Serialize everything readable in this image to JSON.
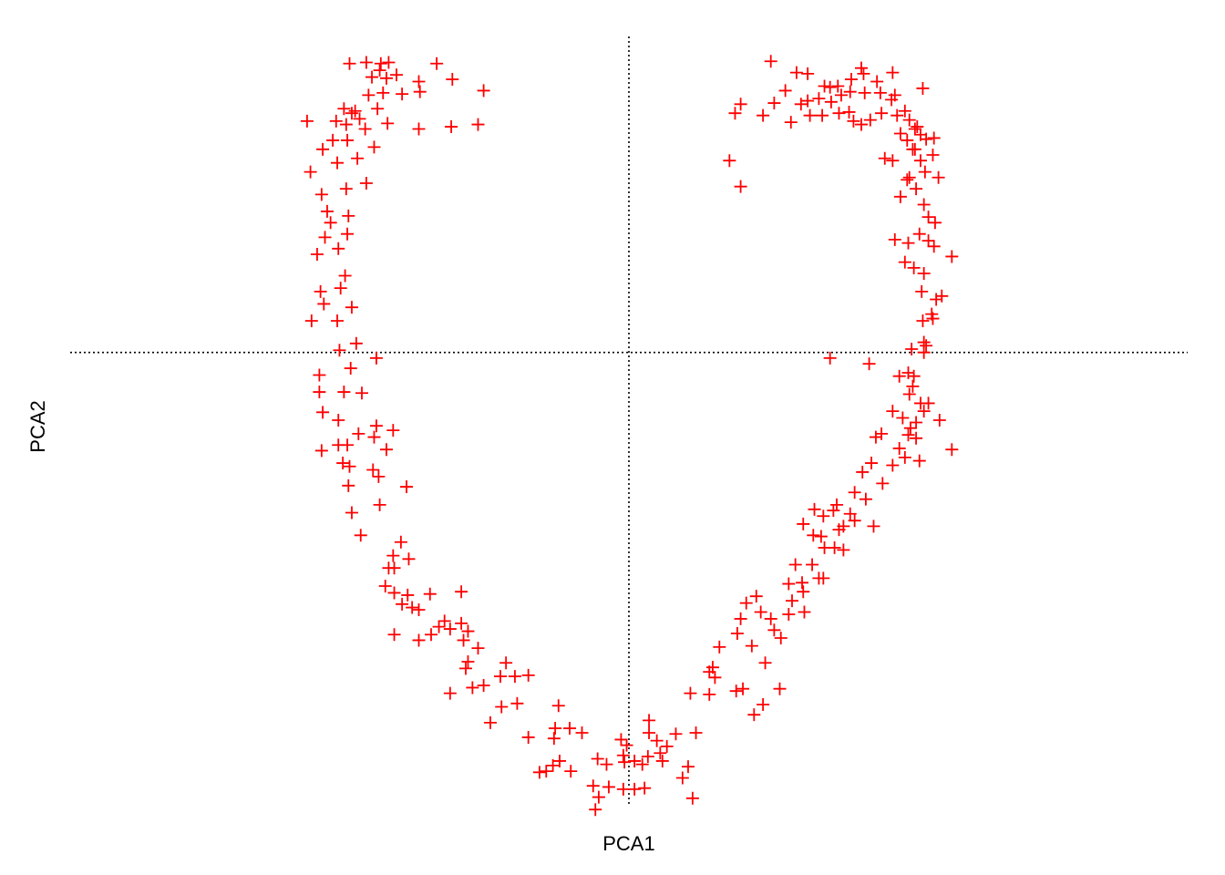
{
  "chart_data": {
    "type": "scatter",
    "xlabel": "PCA1",
    "ylabel": "PCA2",
    "marker": "plus",
    "color": "#ff0000",
    "reference_lines": {
      "x": 0,
      "y": 0
    },
    "grid": false,
    "legend": "none",
    "xlim": [
      -5,
      5
    ],
    "ylim": [
      -4,
      2.8
    ],
    "series": [
      {
        "points": [
          [
            -2.5,
            2.56
          ],
          [
            -2.35,
            2.57
          ],
          [
            -2.15,
            2.57
          ],
          [
            -2.22,
            2.56
          ],
          [
            -1.72,
            2.56
          ],
          [
            -2.23,
            2.5
          ],
          [
            -2.17,
            2.43
          ],
          [
            -2.3,
            2.44
          ],
          [
            -2.08,
            2.46
          ],
          [
            -1.88,
            2.4
          ],
          [
            -1.58,
            2.42
          ],
          [
            -1.87,
            2.31
          ],
          [
            -1.3,
            2.32
          ],
          [
            -2.03,
            2.29
          ],
          [
            -2.33,
            2.28
          ],
          [
            -2.2,
            2.3
          ],
          [
            -2.25,
            2.16
          ],
          [
            -2.45,
            2.14
          ],
          [
            -2.55,
            2.16
          ],
          [
            -2.48,
            2.12
          ],
          [
            -2.62,
            2.05
          ],
          [
            -2.88,
            2.05
          ],
          [
            -2.53,
            2.02
          ],
          [
            -2.41,
            2.07
          ],
          [
            -2.36,
            1.98
          ],
          [
            -2.16,
            2.03
          ],
          [
            -1.88,
            1.98
          ],
          [
            -1.35,
            2.02
          ],
          [
            -1.59,
            2.0
          ],
          [
            -2.28,
            1.82
          ],
          [
            -2.52,
            1.88
          ],
          [
            -2.65,
            1.88
          ],
          [
            -2.74,
            1.8
          ],
          [
            -2.43,
            1.72
          ],
          [
            -2.61,
            1.68
          ],
          [
            -2.85,
            1.6
          ],
          [
            -2.35,
            1.5
          ],
          [
            -2.53,
            1.45
          ],
          [
            -2.75,
            1.4
          ],
          [
            -2.7,
            1.25
          ],
          [
            -2.67,
            1.15
          ],
          [
            -2.51,
            1.21
          ],
          [
            -2.52,
            1.05
          ],
          [
            -2.72,
            1.02
          ],
          [
            -2.6,
            0.92
          ],
          [
            -2.79,
            0.87
          ],
          [
            -2.54,
            0.68
          ],
          [
            -2.76,
            0.54
          ],
          [
            -2.58,
            0.57
          ],
          [
            -2.73,
            0.43
          ],
          [
            -2.48,
            0.4
          ],
          [
            -2.84,
            0.28
          ],
          [
            -2.61,
            0.28
          ],
          [
            -2.44,
            0.08
          ],
          [
            -2.59,
            0.02
          ],
          [
            -2.26,
            -0.05
          ],
          [
            -2.49,
            -0.14
          ],
          [
            -2.77,
            -0.2
          ],
          [
            -2.55,
            -0.35
          ],
          [
            -2.77,
            -0.35
          ],
          [
            -2.39,
            -0.36
          ],
          [
            -2.6,
            -0.6
          ],
          [
            -2.74,
            -0.53
          ],
          [
            -2.26,
            -0.65
          ],
          [
            -2.42,
            -0.72
          ],
          [
            -2.11,
            -0.69
          ],
          [
            -2.6,
            -0.82
          ],
          [
            -2.52,
            -0.82
          ],
          [
            -2.28,
            -0.75
          ],
          [
            -2.75,
            -0.87
          ],
          [
            -2.17,
            -0.86
          ],
          [
            -2.56,
            -0.98
          ],
          [
            -2.5,
            -1.01
          ],
          [
            -2.29,
            -1.04
          ],
          [
            -2.24,
            -1.1
          ],
          [
            -1.99,
            -1.19
          ],
          [
            -2.51,
            -1.18
          ],
          [
            -2.23,
            -1.35
          ],
          [
            -2.48,
            -1.42
          ],
          [
            -2.4,
            -1.62
          ],
          [
            -2.04,
            -1.68
          ],
          [
            -2.11,
            -1.8
          ],
          [
            -1.97,
            -1.83
          ],
          [
            -2.15,
            -1.91
          ],
          [
            -2.1,
            -1.91
          ],
          [
            -2.18,
            -2.07
          ],
          [
            -2.1,
            -2.13
          ],
          [
            -1.98,
            -2.15
          ],
          [
            -1.78,
            -2.14
          ],
          [
            -1.5,
            -2.12
          ],
          [
            -2.03,
            -2.23
          ],
          [
            -1.94,
            -2.26
          ],
          [
            -1.88,
            -2.28
          ],
          [
            -1.65,
            -2.38
          ],
          [
            -1.5,
            -2.4
          ],
          [
            -1.7,
            -2.43
          ],
          [
            -1.6,
            -2.45
          ],
          [
            -1.44,
            -2.47
          ],
          [
            -2.1,
            -2.5
          ],
          [
            -1.88,
            -2.55
          ],
          [
            -1.77,
            -2.5
          ],
          [
            -1.48,
            -2.55
          ],
          [
            -1.35,
            -2.62
          ],
          [
            -1.44,
            -2.74
          ],
          [
            -1.46,
            -2.8
          ],
          [
            -1.1,
            -2.75
          ],
          [
            -1.15,
            -2.87
          ],
          [
            -1.02,
            -2.87
          ],
          [
            -0.9,
            -2.86
          ],
          [
            -1.3,
            -2.95
          ],
          [
            -1.4,
            -2.97
          ],
          [
            -1.6,
            -3.02
          ],
          [
            -1.0,
            -3.11
          ],
          [
            -1.14,
            -3.14
          ],
          [
            -1.24,
            -3.28
          ],
          [
            -0.63,
            -3.13
          ],
          [
            -0.66,
            -3.33
          ],
          [
            -0.53,
            -3.33
          ],
          [
            -0.42,
            -3.37
          ],
          [
            -0.67,
            -3.42
          ],
          [
            -0.9,
            -3.41
          ],
          [
            -0.62,
            -3.62
          ],
          [
            -0.68,
            -3.66
          ],
          [
            -0.8,
            -3.72
          ],
          [
            -0.74,
            -3.71
          ],
          [
            -0.52,
            -3.71
          ],
          [
            -0.28,
            -3.6
          ],
          [
            -0.07,
            -3.43
          ],
          [
            -0.02,
            -3.48
          ],
          [
            -0.05,
            -3.57
          ],
          [
            -0.04,
            -3.63
          ],
          [
            -0.2,
            -3.65
          ],
          [
            0.05,
            -3.62
          ],
          [
            0.12,
            -3.65
          ],
          [
            0.17,
            -3.58
          ],
          [
            0.28,
            -3.55
          ],
          [
            0.25,
            -3.44
          ],
          [
            0.18,
            -3.37
          ],
          [
            0.42,
            -3.38
          ],
          [
            0.34,
            -3.49
          ],
          [
            0.3,
            -3.62
          ],
          [
            0.6,
            -3.37
          ],
          [
            0.53,
            -3.67
          ],
          [
            0.48,
            -3.77
          ],
          [
            0.14,
            -3.86
          ],
          [
            0.05,
            -3.87
          ],
          [
            -0.05,
            -3.87
          ],
          [
            -0.18,
            -3.85
          ],
          [
            -0.32,
            -3.84
          ],
          [
            -0.27,
            -3.94
          ],
          [
            -0.3,
            -4.05
          ],
          [
            0.18,
            -3.26
          ],
          [
            0.55,
            -3.02
          ],
          [
            0.72,
            -3.03
          ],
          [
            0.57,
            -3.95
          ],
          [
            0.72,
            -2.83
          ],
          [
            0.81,
            -2.61
          ],
          [
            0.97,
            -2.49
          ],
          [
            1.1,
            -2.6
          ],
          [
            1.0,
            -2.36
          ],
          [
            1.05,
            -2.22
          ],
          [
            1.18,
            -2.3
          ],
          [
            1.27,
            -2.36
          ],
          [
            1.3,
            -2.46
          ],
          [
            1.46,
            -2.2
          ],
          [
            1.43,
            -2.32
          ],
          [
            1.57,
            -2.3
          ],
          [
            1.14,
            -2.16
          ],
          [
            0.75,
            -2.79
          ],
          [
            0.77,
            -2.88
          ],
          [
            0.96,
            -3.0
          ],
          [
            1.02,
            -2.98
          ],
          [
            1.22,
            -2.75
          ],
          [
            1.36,
            -2.53
          ],
          [
            1.12,
            -3.21
          ],
          [
            1.2,
            -3.12
          ],
          [
            1.35,
            -2.98
          ],
          [
            1.43,
            -2.05
          ],
          [
            1.56,
            -2.12
          ],
          [
            1.7,
            -2.0
          ],
          [
            1.55,
            -2.04
          ],
          [
            1.74,
            -2.0
          ],
          [
            1.49,
            -1.88
          ],
          [
            1.64,
            -1.88
          ],
          [
            1.75,
            -1.73
          ],
          [
            1.84,
            -1.73
          ],
          [
            1.92,
            -1.75
          ],
          [
            1.56,
            -1.52
          ],
          [
            1.65,
            -1.62
          ],
          [
            1.88,
            -1.57
          ],
          [
            2.02,
            -1.49
          ],
          [
            1.98,
            -1.43
          ],
          [
            2.12,
            -1.3
          ],
          [
            1.66,
            -1.39
          ],
          [
            1.86,
            -1.35
          ],
          [
            1.92,
            -1.54
          ],
          [
            1.74,
            -1.45
          ],
          [
            1.83,
            -1.4
          ],
          [
            1.72,
            -1.63
          ],
          [
            2.19,
            -1.54
          ],
          [
            2.02,
            -1.24
          ],
          [
            2.27,
            -1.16
          ],
          [
            2.09,
            -1.06
          ],
          [
            2.36,
            -1.0
          ],
          [
            2.17,
            -0.98
          ],
          [
            2.21,
            -0.75
          ],
          [
            2.52,
            -0.67
          ],
          [
            2.45,
            -0.58
          ],
          [
            2.36,
            -0.52
          ],
          [
            2.26,
            -0.72
          ],
          [
            2.57,
            -0.62
          ],
          [
            2.68,
            -0.45
          ],
          [
            2.51,
            -0.37
          ],
          [
            2.61,
            -0.45
          ],
          [
            2.5,
            -0.18
          ],
          [
            2.42,
            -0.21
          ],
          [
            2.54,
            -0.3
          ],
          [
            2.5,
            -0.73
          ],
          [
            2.42,
            -0.85
          ],
          [
            2.47,
            -0.93
          ],
          [
            2.57,
            -0.76
          ],
          [
            2.64,
            -0.52
          ],
          [
            2.78,
            -0.6
          ],
          [
            2.6,
            -0.96
          ],
          [
            2.89,
            -0.86
          ],
          [
            2.55,
            -0.21
          ],
          [
            2.15,
            -0.1
          ],
          [
            1.8,
            -0.05
          ],
          [
            2.53,
            0.03
          ],
          [
            2.64,
            0.09
          ],
          [
            2.66,
            0.06
          ],
          [
            2.64,
            0.0
          ],
          [
            2.72,
            0.3
          ],
          [
            2.63,
            0.28
          ],
          [
            2.71,
            0.34
          ],
          [
            2.8,
            0.5
          ],
          [
            2.75,
            0.47
          ],
          [
            2.64,
            0.7
          ],
          [
            2.62,
            0.54
          ],
          [
            2.55,
            0.75
          ],
          [
            2.47,
            0.8
          ],
          [
            2.38,
            1.0
          ],
          [
            2.5,
            0.97
          ],
          [
            2.6,
            1.05
          ],
          [
            2.73,
            0.94
          ],
          [
            2.68,
            0.99
          ],
          [
            2.89,
            0.85
          ],
          [
            2.74,
            1.15
          ],
          [
            2.68,
            1.2
          ],
          [
            2.64,
            1.31
          ],
          [
            2.43,
            1.38
          ],
          [
            2.57,
            1.45
          ],
          [
            2.49,
            1.53
          ],
          [
            2.51,
            1.55
          ],
          [
            2.65,
            1.6
          ],
          [
            2.77,
            1.55
          ],
          [
            2.72,
            1.75
          ],
          [
            2.61,
            1.7
          ],
          [
            2.54,
            1.8
          ],
          [
            2.36,
            1.7
          ],
          [
            2.29,
            1.72
          ],
          [
            2.43,
            1.94
          ],
          [
            2.49,
            1.88
          ],
          [
            2.61,
            1.93
          ],
          [
            2.73,
            1.9
          ],
          [
            2.66,
            1.89
          ],
          [
            2.58,
            2.0
          ],
          [
            2.51,
            2.06
          ],
          [
            2.26,
            2.12
          ],
          [
            2.16,
            2.06
          ],
          [
            2.08,
            2.02
          ],
          [
            2.01,
            2.05
          ],
          [
            1.97,
            2.13
          ],
          [
            1.88,
            2.12
          ],
          [
            1.73,
            2.1
          ],
          [
            1.62,
            2.1
          ],
          [
            1.45,
            2.04
          ],
          [
            1.54,
            2.2
          ],
          [
            1.6,
            2.23
          ],
          [
            1.7,
            2.25
          ],
          [
            1.81,
            2.22
          ],
          [
            1.9,
            2.28
          ],
          [
            1.87,
            2.36
          ],
          [
            1.75,
            2.36
          ],
          [
            1.98,
            2.31
          ],
          [
            2.11,
            2.3
          ],
          [
            2.25,
            2.3
          ],
          [
            2.38,
            2.28
          ],
          [
            2.35,
            2.24
          ],
          [
            1.99,
            2.42
          ],
          [
            2.1,
            2.47
          ],
          [
            2.08,
            2.52
          ],
          [
            1.8,
            2.35
          ],
          [
            1.6,
            2.47
          ],
          [
            1.5,
            2.48
          ],
          [
            1.27,
            2.58
          ],
          [
            1.4,
            2.32
          ],
          [
            1.3,
            2.21
          ],
          [
            1.2,
            2.1
          ],
          [
            1.0,
            2.2
          ],
          [
            0.95,
            2.12
          ],
          [
            2.36,
            2.48
          ],
          [
            2.22,
            2.4
          ],
          [
            2.4,
            2.1
          ],
          [
            2.47,
            2.14
          ],
          [
            2.63,
            2.34
          ],
          [
            2.56,
            1.8
          ],
          [
            2.56,
            1.98
          ],
          [
            0.9,
            1.7
          ],
          [
            1.0,
            1.47
          ]
        ]
      }
    ]
  }
}
